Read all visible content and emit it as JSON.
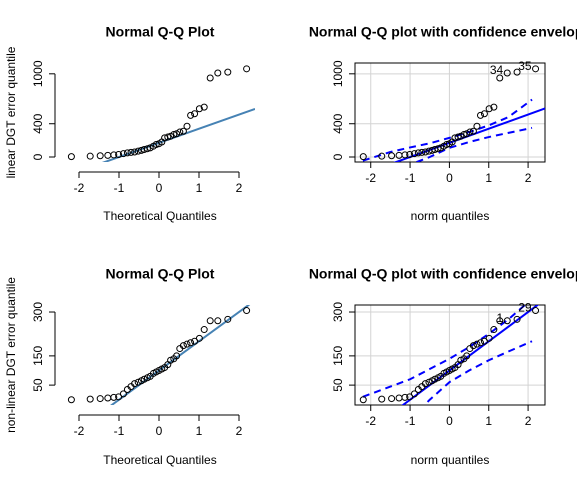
{
  "chart_data": [
    {
      "type": "qq",
      "title": "Normal Q-Q Plot",
      "xlabel": "Theoretical Quantiles",
      "ylabel": "linear DGT error quantile",
      "x": [
        -2.19,
        -1.72,
        -1.47,
        -1.28,
        -1.13,
        -1.01,
        -0.89,
        -0.79,
        -0.7,
        -0.61,
        -0.52,
        -0.44,
        -0.37,
        -0.29,
        -0.22,
        -0.14,
        -0.07,
        0,
        0.07,
        0.14,
        0.22,
        0.29,
        0.37,
        0.44,
        0.52,
        0.61,
        0.7,
        0.79,
        0.89,
        1.01,
        1.13,
        1.28,
        1.47,
        1.72,
        2.19
      ],
      "values": [
        5,
        10,
        15,
        20,
        25,
        30,
        40,
        50,
        55,
        60,
        70,
        80,
        90,
        100,
        110,
        130,
        150,
        160,
        180,
        230,
        240,
        250,
        270,
        280,
        300,
        310,
        370,
        500,
        520,
        580,
        600,
        950,
        1010,
        1020,
        1060
      ],
      "xlim": [
        -2.35,
        2.4
      ],
      "ylim": [
        -60,
        1130
      ],
      "xticks": [
        -2,
        -1,
        0,
        1,
        2
      ],
      "yticks": [
        0,
        400,
        1000
      ],
      "grid": false,
      "box": false,
      "line": {
        "intercept": 170,
        "slope": 170,
        "color": "#4682b4"
      }
    },
    {
      "type": "qq",
      "title": "Normal Q-Q plot with confidence envelope",
      "xlabel": "norm quantiles",
      "x": [
        -2.19,
        -1.72,
        -1.47,
        -1.28,
        -1.13,
        -1.01,
        -0.89,
        -0.79,
        -0.7,
        -0.61,
        -0.52,
        -0.44,
        -0.37,
        -0.29,
        -0.22,
        -0.14,
        -0.07,
        0,
        0.07,
        0.14,
        0.22,
        0.29,
        0.37,
        0.44,
        0.52,
        0.61,
        0.7,
        0.79,
        0.89,
        1.01,
        1.13,
        1.28,
        1.47,
        1.72,
        2.19
      ],
      "values": [
        5,
        10,
        15,
        20,
        25,
        30,
        40,
        50,
        55,
        60,
        70,
        80,
        90,
        100,
        110,
        130,
        150,
        160,
        180,
        230,
        240,
        250,
        270,
        280,
        300,
        310,
        370,
        500,
        520,
        580,
        600,
        950,
        1010,
        1020,
        1060
      ],
      "point_labels": [
        null,
        null,
        null,
        null,
        null,
        null,
        null,
        null,
        null,
        null,
        null,
        null,
        null,
        null,
        null,
        null,
        null,
        null,
        null,
        null,
        null,
        null,
        null,
        null,
        null,
        null,
        null,
        null,
        null,
        null,
        null,
        null,
        "34",
        null,
        "35"
      ],
      "xlim": [
        -2.4,
        2.43
      ],
      "ylim": [
        -60,
        1130
      ],
      "xticks": [
        -2,
        -1,
        0,
        1,
        2
      ],
      "yticks": [
        0,
        400,
        1000
      ],
      "grid": true,
      "box": true,
      "line": {
        "intercept": 170,
        "slope": 170,
        "color": "#0000ff"
      },
      "envelope": {
        "x": [
          -2.2,
          -1.5,
          -1,
          -0.5,
          0,
          0.5,
          1,
          1.5,
          2.1
        ],
        "upper": [
          -44,
          60,
          115,
          165,
          230,
          300,
          380,
          480,
          690
        ],
        "lower": [
          -380,
          -190,
          -90,
          0,
          110,
          180,
          240,
          290,
          350
        ],
        "color": "#0000ff"
      }
    },
    {
      "type": "qq",
      "title": "Normal Q-Q Plot",
      "xlabel": "Theoretical Quantiles",
      "ylabel": "non-linear DGT error quantile",
      "x": [
        -2.19,
        -1.72,
        -1.47,
        -1.28,
        -1.13,
        -1.01,
        -0.89,
        -0.79,
        -0.7,
        -0.61,
        -0.52,
        -0.44,
        -0.37,
        -0.29,
        -0.22,
        -0.14,
        -0.07,
        0,
        0.07,
        0.14,
        0.22,
        0.29,
        0.37,
        0.44,
        0.52,
        0.61,
        0.7,
        0.79,
        0.89,
        1.01,
        1.13,
        1.28,
        1.47,
        1.72,
        2.19
      ],
      "values": [
        0,
        2,
        4,
        6,
        8,
        10,
        20,
        35,
        45,
        55,
        60,
        65,
        70,
        75,
        80,
        90,
        95,
        100,
        105,
        110,
        120,
        135,
        140,
        150,
        175,
        185,
        190,
        195,
        200,
        210,
        240,
        270,
        270,
        275,
        305
      ],
      "xlim": [
        -2.35,
        2.4
      ],
      "ylim": [
        -18,
        324
      ],
      "xticks": [
        -2,
        -1,
        0,
        1,
        2
      ],
      "yticks": [
        50,
        150,
        300
      ],
      "grid": false,
      "box": false,
      "line": {
        "intercept": 100,
        "slope": 100,
        "color": "#4682b4"
      }
    },
    {
      "type": "qq",
      "title": "Normal Q-Q plot with confidence envelope",
      "xlabel": "norm quantiles",
      "x": [
        -2.19,
        -1.72,
        -1.47,
        -1.28,
        -1.13,
        -1.01,
        -0.89,
        -0.79,
        -0.7,
        -0.61,
        -0.52,
        -0.44,
        -0.37,
        -0.29,
        -0.22,
        -0.14,
        -0.07,
        0,
        0.07,
        0.14,
        0.22,
        0.29,
        0.37,
        0.44,
        0.52,
        0.61,
        0.7,
        0.79,
        0.89,
        1.01,
        1.13,
        1.28,
        1.47,
        1.72,
        2.19
      ],
      "values": [
        0,
        2,
        4,
        6,
        8,
        10,
        20,
        35,
        45,
        55,
        60,
        65,
        70,
        75,
        80,
        90,
        95,
        100,
        105,
        110,
        120,
        135,
        140,
        150,
        175,
        185,
        190,
        195,
        200,
        210,
        240,
        270,
        270,
        275,
        305
      ],
      "point_labels": [
        null,
        null,
        null,
        null,
        null,
        null,
        null,
        null,
        null,
        null,
        null,
        null,
        null,
        null,
        null,
        null,
        null,
        null,
        null,
        null,
        null,
        null,
        null,
        null,
        null,
        null,
        null,
        null,
        null,
        null,
        null,
        null,
        "1",
        null,
        "29"
      ],
      "xlim": [
        -2.4,
        2.43
      ],
      "ylim": [
        -18,
        324
      ],
      "xticks": [
        -2,
        -1,
        0,
        1,
        2
      ],
      "yticks": [
        50,
        150,
        300
      ],
      "grid": true,
      "box": true,
      "line": {
        "intercept": 100,
        "slope": 100,
        "color": "#0000ff"
      },
      "envelope": {
        "x": [
          -2.2,
          -1.5,
          -1,
          -0.5,
          0,
          0.5,
          1,
          1.5,
          2.1
        ],
        "upper": [
          10,
          45,
          70,
          105,
          140,
          180,
          225,
          275,
          345
        ],
        "lower": [
          -250,
          -150,
          -70,
          0,
          60,
          100,
          135,
          165,
          200
        ],
        "color": "#0000ff"
      }
    }
  ]
}
